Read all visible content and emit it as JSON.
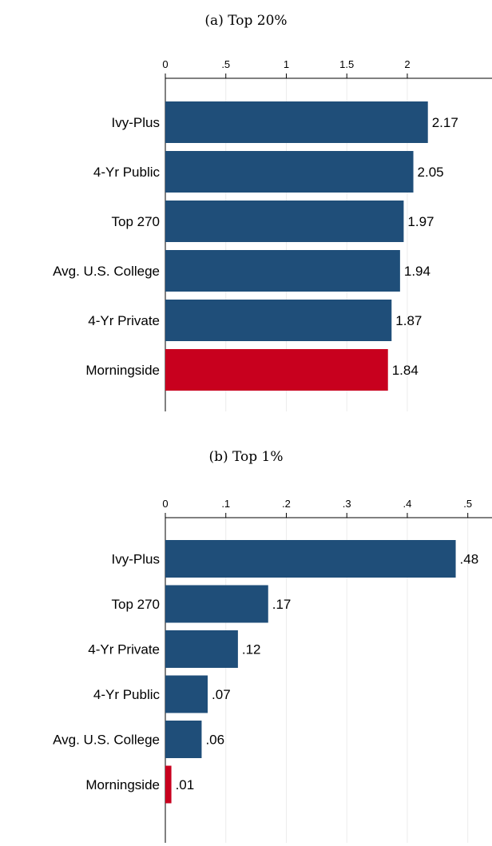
{
  "chart_data": [
    {
      "type": "bar",
      "orientation": "horizontal",
      "title": "(a) Top 20%",
      "categories": [
        "Ivy-Plus",
        "4-Yr Public",
        "Top 270",
        "Avg. U.S. College",
        "4-Yr Private",
        "Morningside"
      ],
      "values": [
        2.17,
        2.05,
        1.97,
        1.94,
        1.87,
        1.84
      ],
      "value_labels": [
        "2.17",
        "2.05",
        "1.97",
        "1.94",
        "1.87",
        "1.84"
      ],
      "ticks": [
        0,
        0.5,
        1,
        1.5,
        2
      ],
      "tick_labels": [
        "0",
        ".5",
        "1",
        "1.5",
        "2"
      ],
      "xlim": [
        0,
        2.7
      ],
      "axis_position": "top",
      "grid": true,
      "colors": [
        "#1f4e79",
        "#1f4e79",
        "#1f4e79",
        "#1f4e79",
        "#1f4e79",
        "#c8001e"
      ]
    },
    {
      "type": "bar",
      "orientation": "horizontal",
      "title": "(b) Top 1%",
      "categories": [
        "Ivy-Plus",
        "Top 270",
        "4-Yr Private",
        "4-Yr Public",
        "Avg. U.S. College",
        "Morningside"
      ],
      "values": [
        0.48,
        0.17,
        0.12,
        0.07,
        0.06,
        0.01
      ],
      "value_labels": [
        ".48",
        ".17",
        ".12",
        ".07",
        ".06",
        ".01"
      ],
      "ticks": [
        0,
        0.1,
        0.2,
        0.3,
        0.4,
        0.5
      ],
      "tick_labels": [
        "0",
        ".1",
        ".2",
        ".3",
        ".4",
        ".5"
      ],
      "xlim": [
        0,
        0.54
      ],
      "axis_position": "top",
      "grid": true,
      "colors": [
        "#1f4e79",
        "#1f4e79",
        "#1f4e79",
        "#1f4e79",
        "#1f4e79",
        "#c8001e"
      ]
    }
  ]
}
